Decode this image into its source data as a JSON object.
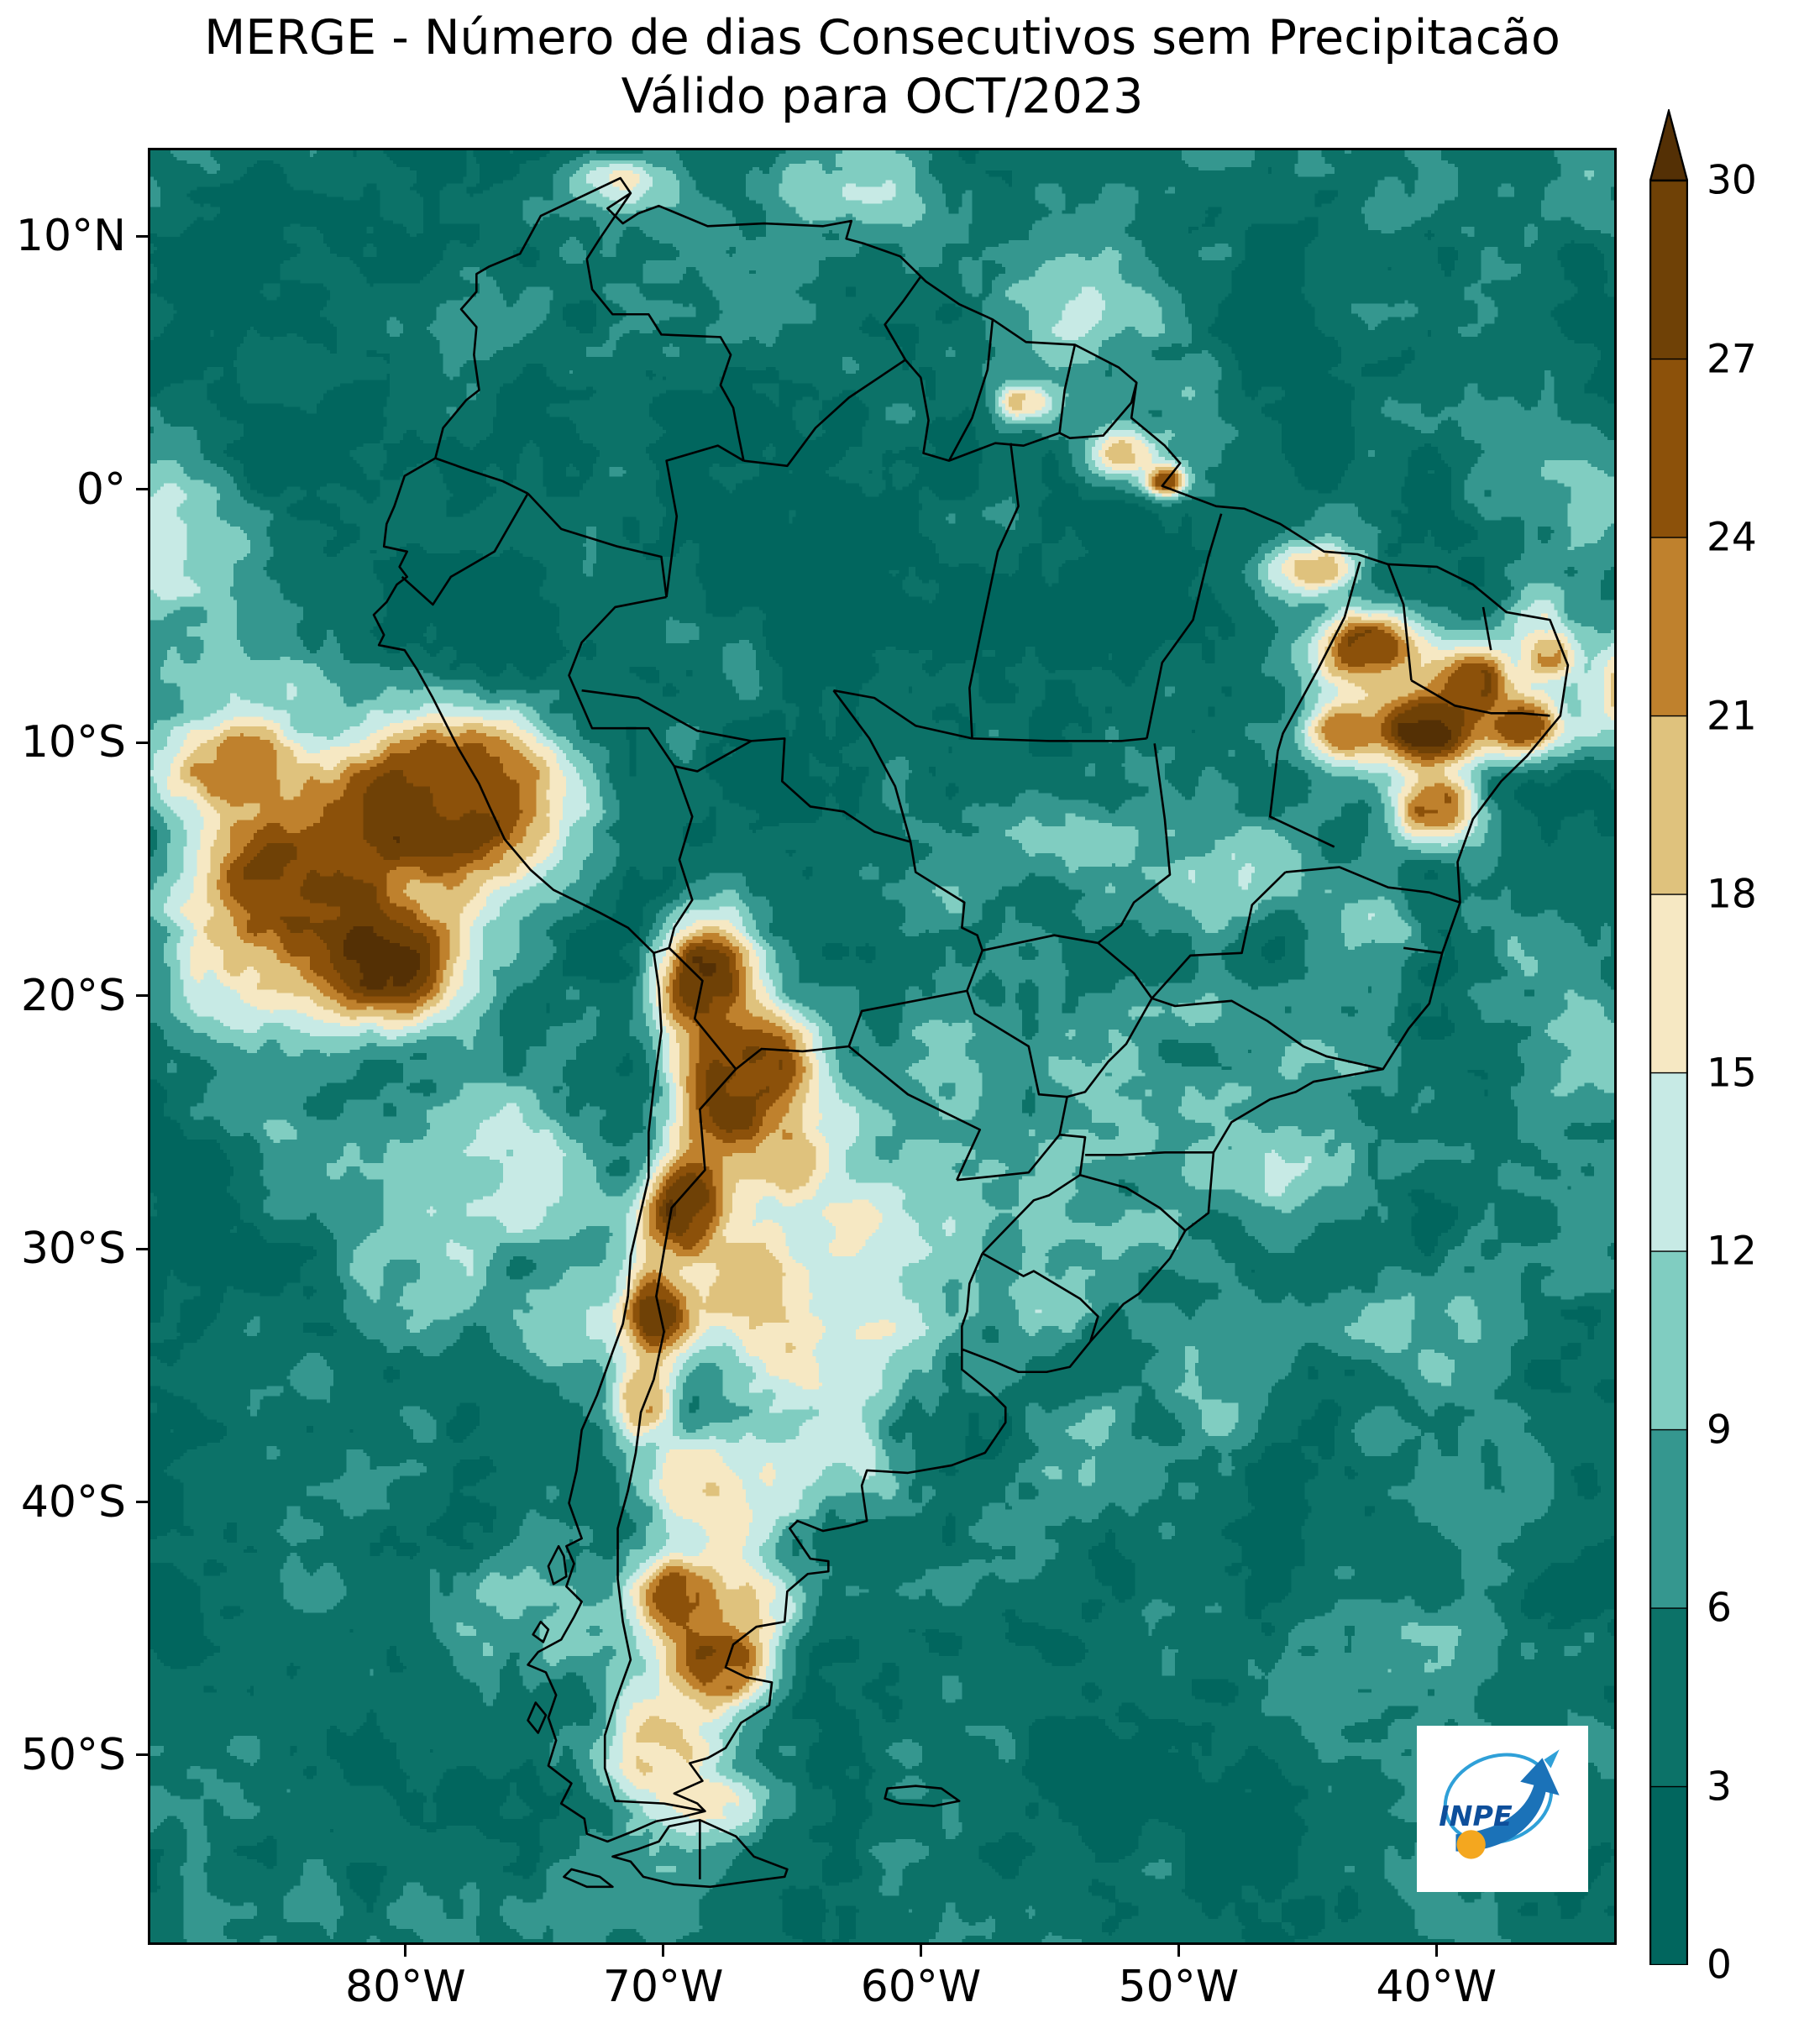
{
  "title": {
    "line1": "MERGE - Número de dias Consecutivos sem Precipitacão",
    "line2": "Válido para OCT/2023"
  },
  "axes": {
    "x_ticks": [
      {
        "label": "80°W",
        "lon": -80
      },
      {
        "label": "70°W",
        "lon": -70
      },
      {
        "label": "60°W",
        "lon": -60
      },
      {
        "label": "50°W",
        "lon": -50
      },
      {
        "label": "40°W",
        "lon": -40
      }
    ],
    "y_ticks": [
      {
        "label": "10°N",
        "lat": 10
      },
      {
        "label": "0°",
        "lat": 0
      },
      {
        "label": "10°S",
        "lat": -10
      },
      {
        "label": "20°S",
        "lat": -20
      },
      {
        "label": "30°S",
        "lat": -30
      },
      {
        "label": "40°S",
        "lat": -40
      },
      {
        "label": "50°S",
        "lat": -50
      }
    ]
  },
  "colorbar": {
    "ticks": [
      "0",
      "3",
      "6",
      "9",
      "12",
      "15",
      "18",
      "21",
      "24",
      "27",
      "30"
    ],
    "over_arrow": true
  },
  "logo": {
    "label": "INPE",
    "blue": "#1b72b8",
    "light_blue": "#2fa0d8",
    "orange": "#f4a71f",
    "dark_blue": "#0e4f9b"
  },
  "chart_data": {
    "type": "heatmap",
    "title": "MERGE - Número de dias Consecutivos sem Precipitacão Válido para OCT/2023",
    "period": "OCT/2023",
    "variable": "Número de dias consecutivos sem precipitacão",
    "units": "dias",
    "extent": {
      "lon_min": -90,
      "lon_max": -33,
      "lat_min": -57.5,
      "lat_max": 13.5
    },
    "levels": [
      0,
      3,
      6,
      9,
      12,
      15,
      18,
      21,
      24,
      27,
      30
    ],
    "palette": [
      "#01665e",
      "#0c7268",
      "#35978f",
      "#80cdc1",
      "#c7eae5",
      "#f6e8c3",
      "#dfc27d",
      "#bf812d",
      "#8c510a",
      "#6f4106"
    ],
    "over_color": "#543005",
    "base_value": 4,
    "regions": [
      {
        "lon": -66,
        "lat": -2.5,
        "rx": 6,
        "ry": 4,
        "v": 1
      },
      {
        "lon": -73,
        "lat": -7,
        "rx": 4,
        "ry": 3,
        "v": 2
      },
      {
        "lon": -59,
        "lat": -5,
        "rx": 5,
        "ry": 3.5,
        "v": 2
      },
      {
        "lon": -69,
        "lat": 3,
        "rx": 5,
        "ry": 4,
        "v": 1
      },
      {
        "lon": -76,
        "lat": 1,
        "rx": 4,
        "ry": 3,
        "v": 2
      },
      {
        "lon": -88,
        "lat": 9,
        "rx": 6,
        "ry": 5,
        "v": 2
      },
      {
        "lon": -82,
        "lat": 9,
        "rx": 3,
        "ry": 2.5,
        "v": 2
      },
      {
        "lon": -64,
        "lat": 7,
        "rx": 4,
        "ry": 3,
        "v": 3
      },
      {
        "lon": -52,
        "lat": -7,
        "rx": 4,
        "ry": 3,
        "v": 3
      },
      {
        "lon": -57,
        "lat": -11,
        "rx": 3,
        "ry": 2.5,
        "v": 3
      },
      {
        "lon": -47,
        "lat": -20,
        "rx": 3,
        "ry": 2.5,
        "v": 5
      },
      {
        "lon": -60,
        "lat": 10,
        "rx": 4,
        "ry": 2.5,
        "v": 8
      },
      {
        "lon": -55,
        "lat": 7.5,
        "rx": 4,
        "ry": 2.5,
        "v": 11
      },
      {
        "lon": -62,
        "lat": 12.5,
        "rx": 3.5,
        "ry": 2,
        "v": 10
      },
      {
        "lon": -50,
        "lat": 3,
        "rx": 3,
        "ry": 2,
        "v": 9
      },
      {
        "lon": -44,
        "lat": -1,
        "rx": 2.5,
        "ry": 1.5,
        "v": 8
      },
      {
        "lon": -35,
        "lat": 0,
        "rx": 4,
        "ry": 3,
        "v": 10
      },
      {
        "lon": -33,
        "lat": -8,
        "rx": 3,
        "ry": 3,
        "v": 12
      },
      {
        "lon": -55,
        "lat": -14,
        "rx": 4,
        "ry": 3,
        "v": 8
      },
      {
        "lon": -49,
        "lat": -16,
        "rx": 3,
        "ry": 2.5,
        "v": 9
      },
      {
        "lon": -47,
        "lat": -15,
        "rx": 2.5,
        "ry": 2,
        "v": 12
      },
      {
        "lon": -42,
        "lat": -17.5,
        "rx": 2,
        "ry": 2,
        "v": 12
      },
      {
        "lon": -50,
        "lat": -22,
        "rx": 4.5,
        "ry": 3.5,
        "v": 8
      },
      {
        "lon": -45,
        "lat": -22.5,
        "rx": 3,
        "ry": 2.5,
        "v": 9
      },
      {
        "lon": -53,
        "lat": -25,
        "rx": 3,
        "ry": 2.5,
        "v": 9
      },
      {
        "lon": -57,
        "lat": -28,
        "rx": 3.5,
        "ry": 3,
        "v": 10
      },
      {
        "lon": -55,
        "lat": -31.5,
        "rx": 3,
        "ry": 2.5,
        "v": 11
      },
      {
        "lon": -51,
        "lat": -30,
        "rx": 2.5,
        "ry": 2,
        "v": 10
      },
      {
        "lon": -59,
        "lat": -23,
        "rx": 3,
        "ry": 2.5,
        "v": 10
      },
      {
        "lon": -61,
        "lat": -26,
        "rx": 3,
        "ry": 2.5,
        "v": 9
      },
      {
        "lon": -76,
        "lat": -27,
        "rx": 4,
        "ry": 3.5,
        "v": 12
      },
      {
        "lon": -80,
        "lat": -31,
        "rx": 4,
        "ry": 3,
        "v": 10
      },
      {
        "lon": -84,
        "lat": -27,
        "rx": 3,
        "ry": 3,
        "v": 9
      },
      {
        "lon": -74,
        "lat": -33,
        "rx": 3,
        "ry": 3,
        "v": 9
      },
      {
        "lon": -87,
        "lat": -20,
        "rx": 3,
        "ry": 3,
        "v": 12
      },
      {
        "lon": -89,
        "lat": -2,
        "rx": 3,
        "ry": 4,
        "v": 12
      },
      {
        "lon": -86,
        "lat": -6,
        "rx": 3,
        "ry": 3,
        "v": 10
      },
      {
        "lon": -76,
        "lat": -45,
        "rx": 4,
        "ry": 4,
        "v": 8
      },
      {
        "lon": -45,
        "lat": -27,
        "rx": 3,
        "ry": 3,
        "v": 10
      },
      {
        "lon": -40,
        "lat": -33,
        "rx": 4,
        "ry": 3,
        "v": 10
      },
      {
        "lon": -35,
        "lat": -30,
        "rx": 4,
        "ry": 3,
        "v": 8
      },
      {
        "lon": -48,
        "lat": -35,
        "rx": 3,
        "ry": 3,
        "v": 9
      },
      {
        "lon": -38,
        "lat": -39,
        "rx": 4,
        "ry": 3,
        "v": 7
      },
      {
        "lon": -54,
        "lat": -38,
        "rx": 3,
        "ry": 3,
        "v": 8
      },
      {
        "lon": -34,
        "lat": -22,
        "rx": 3,
        "ry": 3,
        "v": 9
      },
      {
        "lon": -36,
        "lat": -18,
        "rx": 2.5,
        "ry": 2,
        "v": 8
      },
      {
        "lon": -44,
        "lat": -47,
        "rx": 5,
        "ry": 4,
        "v": 8
      },
      {
        "lon": -72,
        "lat": 12,
        "rx": 2.5,
        "ry": 1.5,
        "v": 12
      },
      {
        "lon": -48.5,
        "lat": -27.5,
        "rx": 1.5,
        "ry": 1.5,
        "v": 10
      },
      {
        "lon": -36,
        "lat": -5.5,
        "rx": 1.5,
        "ry": 1.5,
        "v": 14
      },
      {
        "lon": -64,
        "lat": -34,
        "rx": 4,
        "ry": 3.5,
        "v": 16
      },
      {
        "lon": -62,
        "lat": -30,
        "rx": 3,
        "ry": 3,
        "v": 15
      },
      {
        "lon": -67,
        "lat": -40,
        "rx": 3,
        "ry": 3,
        "v": 16
      },
      {
        "lon": -66,
        "lat": -44,
        "rx": 2,
        "ry": 2,
        "v": 17
      },
      {
        "lon": -70,
        "lat": -50,
        "rx": 2.5,
        "ry": 3,
        "v": 16
      },
      {
        "lon": -68,
        "lat": -52,
        "rx": 2,
        "ry": 1.5,
        "v": 15
      },
      {
        "lon": -63,
        "lat": -38.5,
        "rx": 2.5,
        "ry": 2,
        "v": 14
      },
      {
        "lon": -44.5,
        "lat": -3,
        "rx": 2.2,
        "ry": 1.2,
        "v": 18
      },
      {
        "lon": -52,
        "lat": 1.5,
        "rx": 1.6,
        "ry": 1,
        "v": 18
      },
      {
        "lon": -56,
        "lat": 3.5,
        "rx": 1.2,
        "ry": 0.8,
        "v": 17
      },
      {
        "lon": -71.5,
        "lat": 12.3,
        "rx": 1.2,
        "ry": 0.8,
        "v": 16
      },
      {
        "lon": -79,
        "lat": -12.5,
        "rx": 5.5,
        "ry": 4,
        "v": 28
      },
      {
        "lon": -84.5,
        "lat": -15.5,
        "rx": 4.5,
        "ry": 3.5,
        "v": 26
      },
      {
        "lon": -81,
        "lat": -18.5,
        "rx": 3.5,
        "ry": 3,
        "v": 27
      },
      {
        "lon": -87,
        "lat": -11,
        "rx": 3,
        "ry": 2.5,
        "v": 23
      },
      {
        "lon": -77,
        "lat": -11,
        "rx": 2.5,
        "ry": 2,
        "v": 26
      },
      {
        "lon": -68.3,
        "lat": -19.5,
        "rx": 2.2,
        "ry": 2.8,
        "v": 30
      },
      {
        "lon": -67.3,
        "lat": -24,
        "rx": 2.4,
        "ry": 3,
        "v": 30
      },
      {
        "lon": -69,
        "lat": -28.5,
        "rx": 2,
        "ry": 2.8,
        "v": 29
      },
      {
        "lon": -70.3,
        "lat": -32.5,
        "rx": 1.6,
        "ry": 2.4,
        "v": 27
      },
      {
        "lon": -70.8,
        "lat": -36,
        "rx": 1.4,
        "ry": 2,
        "v": 22
      },
      {
        "lon": -66.5,
        "lat": -22.5,
        "rx": 2.5,
        "ry": 2.5,
        "v": 25
      },
      {
        "lon": -65.3,
        "lat": -26.5,
        "rx": 2.2,
        "ry": 2,
        "v": 21
      },
      {
        "lon": -66.5,
        "lat": -31,
        "rx": 2.5,
        "ry": 2.5,
        "v": 21
      },
      {
        "lon": -69,
        "lat": -39,
        "rx": 1.8,
        "ry": 2,
        "v": 19
      },
      {
        "lon": -67.8,
        "lat": -46.5,
        "rx": 2.4,
        "ry": 2.4,
        "v": 26
      },
      {
        "lon": -69.5,
        "lat": -43.8,
        "rx": 2,
        "ry": 2,
        "v": 22
      },
      {
        "lon": -40.3,
        "lat": -9.3,
        "rx": 2.6,
        "ry": 2,
        "v": 29
      },
      {
        "lon": -42.5,
        "lat": -6.3,
        "rx": 2.4,
        "ry": 1.8,
        "v": 25
      },
      {
        "lon": -38.6,
        "lat": -7.6,
        "rx": 2,
        "ry": 1.6,
        "v": 27
      },
      {
        "lon": -36.6,
        "lat": -9.2,
        "rx": 1.6,
        "ry": 1.4,
        "v": 25
      },
      {
        "lon": -40,
        "lat": -12.5,
        "rx": 1.8,
        "ry": 1.6,
        "v": 23
      },
      {
        "lon": -43.5,
        "lat": -9.5,
        "rx": 1.6,
        "ry": 1.4,
        "v": 22
      },
      {
        "lon": -35.5,
        "lat": -6.5,
        "rx": 1,
        "ry": 1,
        "v": 22
      },
      {
        "lon": -50.5,
        "lat": 0.4,
        "rx": 0.9,
        "ry": 0.7,
        "v": 25
      },
      {
        "lon": -32.5,
        "lat": -8,
        "rx": 1,
        "ry": 1.5,
        "v": 22
      }
    ]
  }
}
